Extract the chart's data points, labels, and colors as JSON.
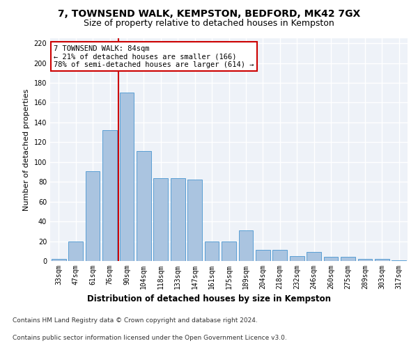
{
  "title1": "7, TOWNSEND WALK, KEMPSTON, BEDFORD, MK42 7GX",
  "title2": "Size of property relative to detached houses in Kempston",
  "xlabel": "Distribution of detached houses by size in Kempston",
  "ylabel": "Number of detached properties",
  "categories": [
    "33sqm",
    "47sqm",
    "61sqm",
    "76sqm",
    "90sqm",
    "104sqm",
    "118sqm",
    "133sqm",
    "147sqm",
    "161sqm",
    "175sqm",
    "189sqm",
    "204sqm",
    "218sqm",
    "232sqm",
    "246sqm",
    "260sqm",
    "275sqm",
    "289sqm",
    "303sqm",
    "317sqm"
  ],
  "values": [
    2,
    20,
    91,
    132,
    170,
    111,
    84,
    84,
    82,
    20,
    20,
    31,
    11,
    11,
    5,
    9,
    4,
    4,
    2,
    2,
    1
  ],
  "bar_color": "#aac4e0",
  "bar_edge_color": "#5a9fd4",
  "property_line_x": 3.5,
  "annotation_line1": "7 TOWNSEND WALK: 84sqm",
  "annotation_line2": "← 21% of detached houses are smaller (166)",
  "annotation_line3": "78% of semi-detached houses are larger (614) →",
  "annotation_box_color": "#ffffff",
  "annotation_box_edge": "#cc0000",
  "line_color": "#cc0000",
  "footer1": "Contains HM Land Registry data © Crown copyright and database right 2024.",
  "footer2": "Contains public sector information licensed under the Open Government Licence v3.0.",
  "ylim": [
    0,
    225
  ],
  "yticks": [
    0,
    20,
    40,
    60,
    80,
    100,
    120,
    140,
    160,
    180,
    200,
    220
  ],
  "background_color": "#eef2f8",
  "grid_color": "#ffffff",
  "title1_fontsize": 10,
  "title2_fontsize": 9,
  "xlabel_fontsize": 8.5,
  "ylabel_fontsize": 8,
  "tick_fontsize": 7,
  "footer_fontsize": 6.5,
  "annotation_fontsize": 7.5
}
